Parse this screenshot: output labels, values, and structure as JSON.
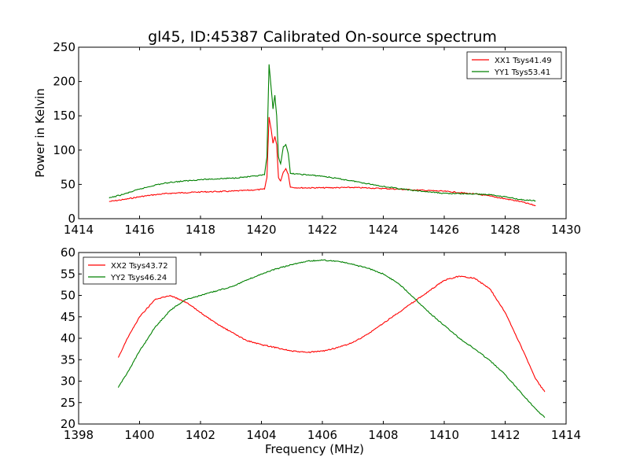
{
  "title": "gl45, ID:45387 Calibrated On-source spectrum",
  "colors": {
    "xx": "#ff0000",
    "yy": "#008000",
    "axes": "#000000",
    "background": "#ffffff"
  },
  "chart_data": [
    {
      "type": "line",
      "title": "gl45, ID:45387 Calibrated On-source spectrum",
      "xlabel": "",
      "ylabel": "Power in Kelvin",
      "xlim": [
        1414,
        1430
      ],
      "ylim": [
        0,
        250
      ],
      "xticks": [
        1414,
        1416,
        1418,
        1420,
        1422,
        1424,
        1426,
        1428,
        1430
      ],
      "yticks": [
        0,
        50,
        100,
        150,
        200,
        250
      ],
      "grid": false,
      "legend_position": "top-right",
      "series": [
        {
          "name": "XX1 Tsys41.49",
          "color": "#ff0000",
          "points": [
            [
              1415,
              25
            ],
            [
              1415.5,
              28
            ],
            [
              1416,
              32
            ],
            [
              1416.5,
              35
            ],
            [
              1417,
              37
            ],
            [
              1417.5,
              38
            ],
            [
              1418,
              39
            ],
            [
              1419,
              40
            ],
            [
              1419.8,
              42
            ],
            [
              1420.1,
              43
            ],
            [
              1420.18,
              60
            ],
            [
              1420.25,
              148
            ],
            [
              1420.32,
              130
            ],
            [
              1420.38,
              110
            ],
            [
              1420.44,
              120
            ],
            [
              1420.5,
              108
            ],
            [
              1420.56,
              60
            ],
            [
              1420.63,
              55
            ],
            [
              1420.72,
              68
            ],
            [
              1420.8,
              73
            ],
            [
              1420.88,
              65
            ],
            [
              1420.95,
              46
            ],
            [
              1421.2,
              45
            ],
            [
              1422,
              45
            ],
            [
              1423,
              45.5
            ],
            [
              1424,
              44
            ],
            [
              1425,
              42
            ],
            [
              1426,
              40
            ],
            [
              1427,
              36
            ],
            [
              1427.5,
              33
            ],
            [
              1428,
              29
            ],
            [
              1428.5,
              25
            ],
            [
              1429,
              19
            ]
          ]
        },
        {
          "name": "YY1 Tsys53.41",
          "color": "#008000",
          "points": [
            [
              1415,
              30
            ],
            [
              1415.5,
              36
            ],
            [
              1416,
              43
            ],
            [
              1416.5,
              49
            ],
            [
              1417,
              53
            ],
            [
              1417.5,
              55
            ],
            [
              1418,
              57
            ],
            [
              1419,
              59
            ],
            [
              1419.8,
              62
            ],
            [
              1420.1,
              64
            ],
            [
              1420.18,
              90
            ],
            [
              1420.25,
              225
            ],
            [
              1420.32,
              190
            ],
            [
              1420.38,
              160
            ],
            [
              1420.44,
              180
            ],
            [
              1420.5,
              150
            ],
            [
              1420.56,
              90
            ],
            [
              1420.63,
              80
            ],
            [
              1420.72,
              105
            ],
            [
              1420.8,
              108
            ],
            [
              1420.88,
              95
            ],
            [
              1420.95,
              66
            ],
            [
              1421.2,
              65
            ],
            [
              1422,
              62
            ],
            [
              1423,
              55
            ],
            [
              1424,
              47
            ],
            [
              1425,
              41
            ],
            [
              1426,
              37
            ],
            [
              1427,
              36
            ],
            [
              1427.5,
              35
            ],
            [
              1428,
              32
            ],
            [
              1428.5,
              28
            ],
            [
              1429,
              26
            ]
          ]
        }
      ]
    },
    {
      "type": "line",
      "title": "",
      "xlabel": "Frequency (MHz)",
      "ylabel": "",
      "xlim": [
        1398,
        1414
      ],
      "ylim": [
        20,
        60
      ],
      "xticks": [
        1398,
        1400,
        1402,
        1404,
        1406,
        1408,
        1410,
        1412,
        1414
      ],
      "yticks": [
        20,
        25,
        30,
        35,
        40,
        45,
        50,
        55,
        60
      ],
      "grid": false,
      "legend_position": "top-left",
      "series": [
        {
          "name": "XX2 Tsys43.72",
          "color": "#ff0000",
          "points": [
            [
              1399.3,
              35.5
            ],
            [
              1399.6,
              40
            ],
            [
              1400,
              45
            ],
            [
              1400.5,
              49
            ],
            [
              1401,
              50
            ],
            [
              1401.5,
              48.5
            ],
            [
              1402,
              46
            ],
            [
              1402.5,
              43.5
            ],
            [
              1403,
              41.5
            ],
            [
              1403.5,
              39.5
            ],
            [
              1404,
              38.5
            ],
            [
              1404.5,
              37.8
            ],
            [
              1405,
              37
            ],
            [
              1405.5,
              36.7
            ],
            [
              1406,
              37
            ],
            [
              1406.5,
              37.8
            ],
            [
              1407,
              39
            ],
            [
              1407.5,
              41
            ],
            [
              1408,
              43.5
            ],
            [
              1408.5,
              46
            ],
            [
              1409,
              48.5
            ],
            [
              1409.5,
              51
            ],
            [
              1410,
              53.5
            ],
            [
              1410.5,
              54.5
            ],
            [
              1411,
              54
            ],
            [
              1411.5,
              51.5
            ],
            [
              1412,
              46
            ],
            [
              1412.5,
              38.5
            ],
            [
              1413,
              30.5
            ],
            [
              1413.3,
              27.5
            ]
          ]
        },
        {
          "name": "YY2 Tsys46.24",
          "color": "#008000",
          "points": [
            [
              1399.3,
              28.5
            ],
            [
              1399.6,
              32
            ],
            [
              1400,
              37
            ],
            [
              1400.5,
              42.5
            ],
            [
              1401,
              46.5
            ],
            [
              1401.5,
              49
            ],
            [
              1402,
              50
            ],
            [
              1402.5,
              51
            ],
            [
              1403,
              52
            ],
            [
              1403.5,
              53.5
            ],
            [
              1404,
              55
            ],
            [
              1404.5,
              56.2
            ],
            [
              1405,
              57.2
            ],
            [
              1405.5,
              58
            ],
            [
              1406,
              58.2
            ],
            [
              1406.5,
              58
            ],
            [
              1407,
              57.2
            ],
            [
              1407.5,
              56.3
            ],
            [
              1408,
              55
            ],
            [
              1408.5,
              52.8
            ],
            [
              1409,
              49.5
            ],
            [
              1409.5,
              46
            ],
            [
              1410,
              43
            ],
            [
              1410.5,
              40
            ],
            [
              1411,
              37.5
            ],
            [
              1411.5,
              34.8
            ],
            [
              1412,
              31.5
            ],
            [
              1412.5,
              27.5
            ],
            [
              1413,
              23.5
            ],
            [
              1413.3,
              21.5
            ]
          ]
        }
      ]
    }
  ]
}
